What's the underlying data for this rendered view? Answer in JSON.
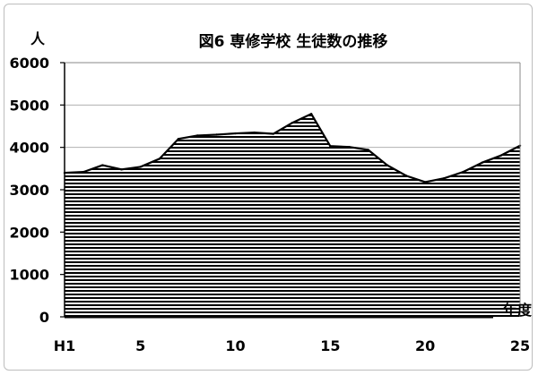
{
  "chart_data": {
    "type": "area",
    "title": "図6 専修学校 生徒数の推移",
    "ylabel": "人",
    "xlabel": "年度",
    "ylim": [
      0,
      6000
    ],
    "yticks": [
      0,
      1000,
      2000,
      3000,
      4000,
      5000,
      6000
    ],
    "xticks": [
      {
        "x": 1,
        "label": "H1"
      },
      {
        "x": 5,
        "label": "5"
      },
      {
        "x": 10,
        "label": "10"
      },
      {
        "x": 15,
        "label": "15"
      },
      {
        "x": 20,
        "label": "20"
      },
      {
        "x": 25,
        "label": "25"
      }
    ],
    "grid": "horizontal",
    "fill_pattern": "horizontal-stripes",
    "series": [
      {
        "x": [
          1,
          2,
          3,
          4,
          5,
          6,
          7,
          8,
          9,
          10,
          11,
          12,
          13,
          14,
          15,
          16,
          17,
          18,
          19,
          20,
          21,
          22,
          23,
          24,
          25
        ],
        "values": [
          3400,
          3420,
          3580,
          3480,
          3540,
          3730,
          4200,
          4280,
          4300,
          4330,
          4350,
          4320,
          4580,
          4790,
          4030,
          4010,
          3940,
          3580,
          3330,
          3180,
          3270,
          3420,
          3640,
          3810,
          4040
        ]
      }
    ]
  }
}
